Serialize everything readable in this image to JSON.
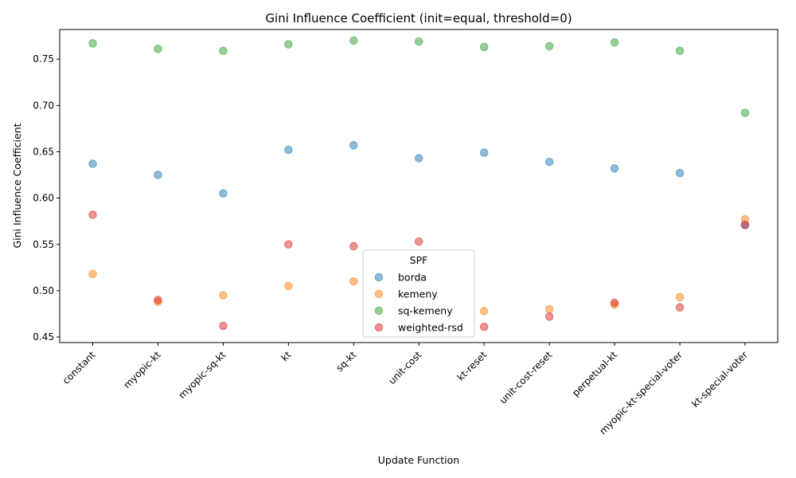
{
  "chart_data": {
    "type": "scatter",
    "title": "Gini Influence Coefficient (init=equal, threshold=0)",
    "xlabel": "Update Function",
    "ylabel": "Gini Influence Coefficient",
    "categories": [
      "constant",
      "myopic-kt",
      "myopic-sq-kt",
      "kt",
      "sq-kt",
      "unit-cost",
      "kt-reset",
      "unit-cost-reset",
      "perpetual-kt",
      "myopic-kt-special-voter",
      "kt-special-voter"
    ],
    "ylim": [
      0.444,
      0.782
    ],
    "yticks": [
      0.45,
      0.5,
      0.55,
      0.6,
      0.65,
      0.7,
      0.75
    ],
    "ytick_labels": [
      "0.45",
      "0.50",
      "0.55",
      "0.60",
      "0.65",
      "0.70",
      "0.75"
    ],
    "grid": false,
    "legend": {
      "title": "SPF",
      "placement": "lower-center"
    },
    "series": [
      {
        "name": "borda",
        "color": "#1f77b4",
        "values": [
          0.637,
          0.625,
          0.605,
          0.652,
          0.657,
          0.643,
          0.649,
          0.639,
          0.632,
          0.627,
          0.571
        ]
      },
      {
        "name": "kemeny",
        "color": "#ff7f0e",
        "values": [
          0.518,
          0.488,
          0.495,
          0.505,
          0.51,
          0.512,
          0.478,
          0.48,
          0.485,
          0.493,
          0.577
        ]
      },
      {
        "name": "sq-kemeny",
        "color": "#2ca02c",
        "values": [
          0.767,
          0.761,
          0.759,
          0.766,
          0.77,
          0.769,
          0.763,
          0.764,
          0.768,
          0.759,
          0.692
        ]
      },
      {
        "name": "weighted-rsd",
        "color": "#d62728",
        "values": [
          0.582,
          0.49,
          0.462,
          0.55,
          0.548,
          0.553,
          0.461,
          0.472,
          0.487,
          0.482,
          0.571
        ]
      }
    ]
  }
}
